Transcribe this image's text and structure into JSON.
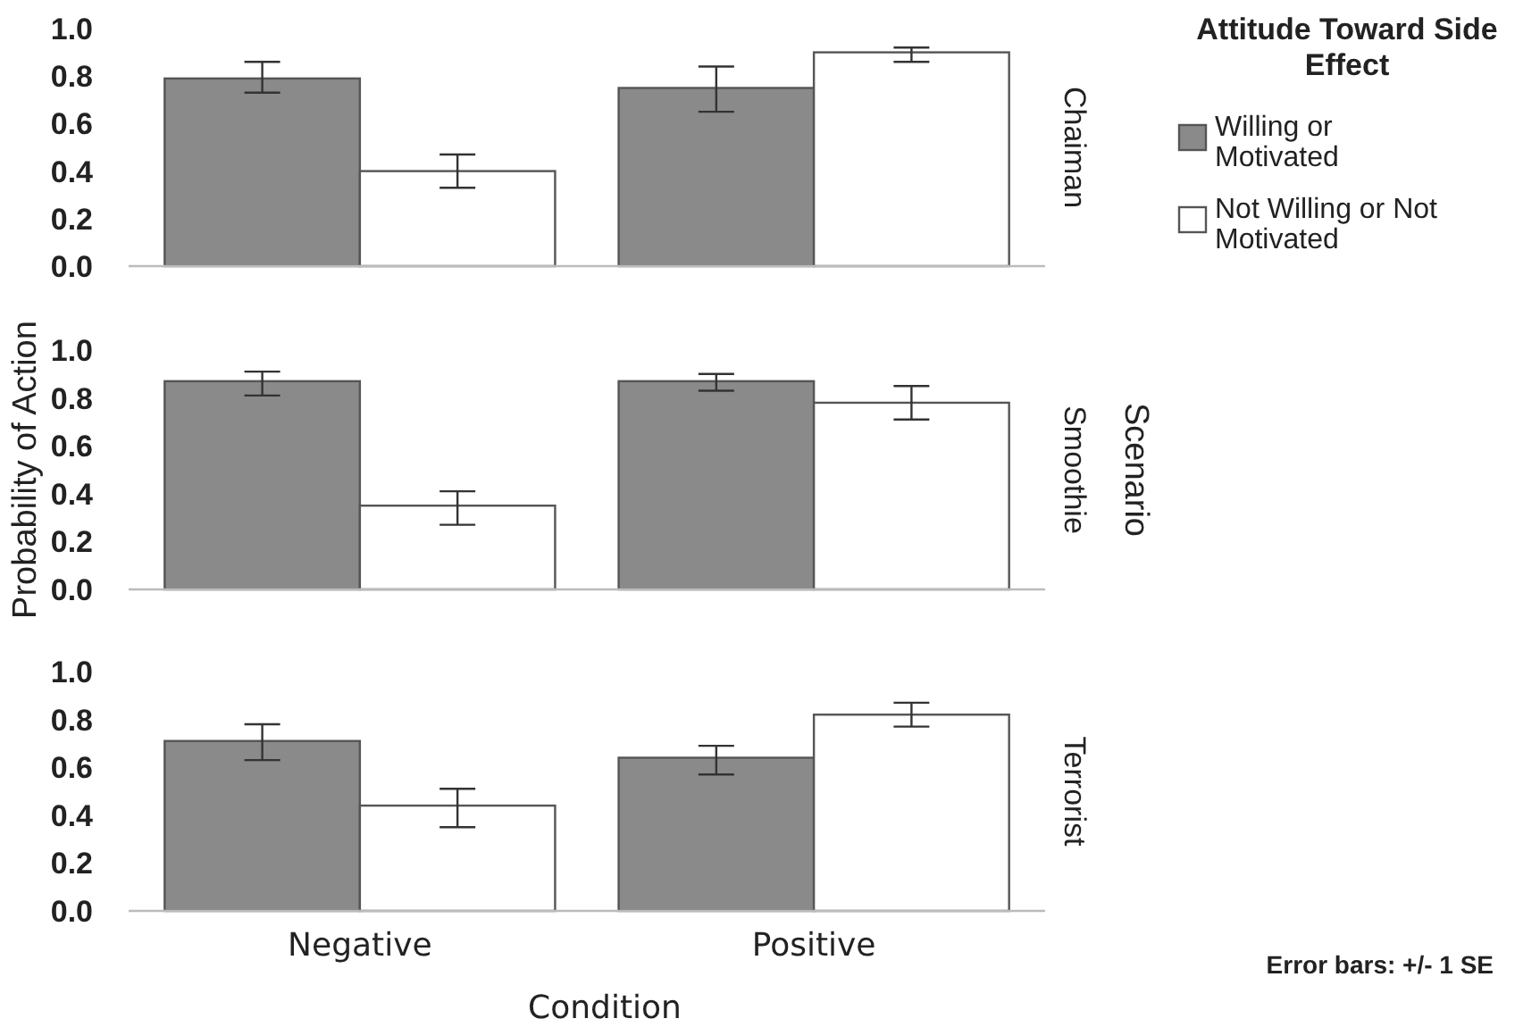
{
  "chart_data": [
    {
      "type": "bar",
      "title": "Chaiman",
      "categories": [
        null,
        null
      ],
      "ylim": [
        0,
        1
      ],
      "yticks": [
        {
          "value": 0,
          "label": "0.0"
        },
        {
          "value": 0.2,
          "label": "0.2"
        },
        {
          "value": 0.4,
          "label": "0.4"
        },
        {
          "value": 0.6,
          "label": "0.6"
        },
        {
          "value": 0.8,
          "label": "0.8"
        },
        {
          "value": 1,
          "label": "1.0"
        }
      ],
      "legend": "right",
      "legend_title": "Attitude Toward Side Effect",
      "series": [
        {
          "name": "Willing or Motivated",
          "color": "#8a8a8a",
          "values": [
            0.79,
            0.75
          ],
          "errors": [
            [
              0.73,
              0.86
            ],
            [
              0.65,
              0.84
            ]
          ]
        },
        {
          "name": "Not Willing or Not Motivated",
          "color": "#ffffff",
          "values": [
            0.4,
            0.9
          ],
          "errors": [
            [
              0.33,
              0.47
            ],
            [
              0.86,
              0.92
            ]
          ]
        }
      ]
    },
    {
      "type": "bar",
      "title": "Smoothie",
      "ylabel": "Probability of Action",
      "annotations": [
        "Scenario"
      ],
      "categories": [
        null,
        null
      ],
      "ylim": [
        0,
        1
      ],
      "yticks": [
        {
          "value": 0,
          "label": "0.0"
        },
        {
          "value": 0.2,
          "label": "0.2"
        },
        {
          "value": 0.4,
          "label": "0.4"
        },
        {
          "value": 0.6,
          "label": "0.6"
        },
        {
          "value": 0.8,
          "label": "0.8"
        },
        {
          "value": 1,
          "label": "1.0"
        }
      ],
      "series": [
        {
          "color": "#8a8a8a",
          "values": [
            0.87,
            0.87
          ],
          "errors": [
            [
              0.81,
              0.91
            ],
            [
              0.83,
              0.9
            ]
          ]
        },
        {
          "color": "#ffffff",
          "values": [
            0.35,
            0.78
          ],
          "errors": [
            [
              0.27,
              0.41
            ],
            [
              0.71,
              0.85
            ]
          ]
        }
      ]
    },
    {
      "type": "bar",
      "title": "Terrorist",
      "xlabel": "Condition",
      "annotations": [
        "Error bars: +/- 1 SE"
      ],
      "categories": [
        "Negative",
        "Positive"
      ],
      "ylim": [
        0,
        1
      ],
      "yticks": [
        {
          "value": 0,
          "label": "0.0"
        },
        {
          "value": 0.2,
          "label": "0.2"
        },
        {
          "value": 0.4,
          "label": "0.4"
        },
        {
          "value": 0.6,
          "label": "0.6"
        },
        {
          "value": 0.8,
          "label": "0.8"
        },
        {
          "value": 1,
          "label": "1.0"
        }
      ],
      "series": [
        {
          "color": "#8a8a8a",
          "values": [
            0.71,
            0.64
          ],
          "errors": [
            [
              0.63,
              0.78
            ],
            [
              0.57,
              0.69
            ]
          ]
        },
        {
          "color": "#ffffff",
          "values": [
            0.44,
            0.82
          ],
          "errors": [
            [
              0.35,
              0.51
            ],
            [
              0.77,
              0.87
            ]
          ]
        }
      ]
    }
  ]
}
